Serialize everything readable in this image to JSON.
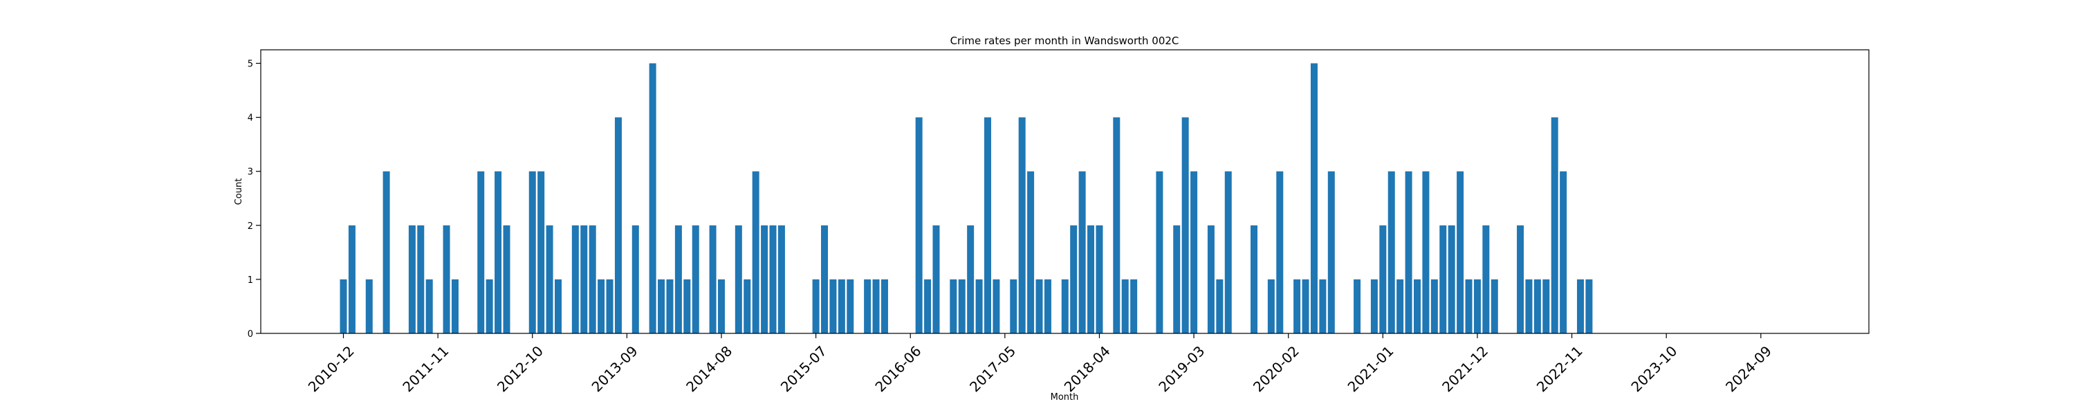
{
  "chart_data": {
    "type": "bar",
    "title": "Crime rates per month in Wandsworth 002C",
    "xlabel": "Month",
    "ylabel": "Count",
    "ylim": [
      0,
      5.25
    ],
    "y_ticks": [
      "0",
      "1",
      "2",
      "3",
      "4",
      "5"
    ],
    "x_tick_labels": [
      "2010-12",
      "2011-11",
      "2012-10",
      "2013-09",
      "2014-08",
      "2015-07",
      "2016-06",
      "2017-05",
      "2018-04",
      "2019-03",
      "2020-02",
      "2021-01",
      "2021-12",
      "2022-11",
      "2023-10",
      "2024-09"
    ],
    "bar_color": "#1f77b4",
    "grid": false,
    "series": [
      {
        "values": [
          [
            "2010-12",
            1
          ],
          [
            "2011-01",
            2
          ],
          [
            "2011-03",
            1
          ],
          [
            "2011-05",
            3
          ],
          [
            "2011-08",
            2
          ],
          [
            "2011-09",
            2
          ],
          [
            "2011-10",
            1
          ],
          [
            "2011-12",
            2
          ],
          [
            "2012-01",
            1
          ],
          [
            "2012-04",
            3
          ],
          [
            "2012-05",
            1
          ],
          [
            "2012-06",
            3
          ],
          [
            "2012-07",
            2
          ],
          [
            "2012-10",
            3
          ],
          [
            "2012-11",
            3
          ],
          [
            "2012-12",
            2
          ],
          [
            "2013-01",
            1
          ],
          [
            "2013-03",
            2
          ],
          [
            "2013-04",
            2
          ],
          [
            "2013-05",
            2
          ],
          [
            "2013-06",
            1
          ],
          [
            "2013-07",
            1
          ],
          [
            "2013-08",
            4
          ],
          [
            "2013-10",
            2
          ],
          [
            "2013-12",
            5
          ],
          [
            "2014-01",
            1
          ],
          [
            "2014-02",
            1
          ],
          [
            "2014-03",
            2
          ],
          [
            "2014-04",
            1
          ],
          [
            "2014-05",
            2
          ],
          [
            "2014-07",
            2
          ],
          [
            "2014-08",
            1
          ],
          [
            "2014-10",
            2
          ],
          [
            "2014-11",
            1
          ],
          [
            "2014-12",
            3
          ],
          [
            "2015-01",
            2
          ],
          [
            "2015-02",
            2
          ],
          [
            "2015-03",
            2
          ],
          [
            "2015-07",
            1
          ],
          [
            "2015-08",
            2
          ],
          [
            "2015-09",
            1
          ],
          [
            "2015-10",
            1
          ],
          [
            "2015-11",
            1
          ],
          [
            "2016-01",
            1
          ],
          [
            "2016-02",
            1
          ],
          [
            "2016-03",
            1
          ],
          [
            "2016-07",
            4
          ],
          [
            "2016-08",
            1
          ],
          [
            "2016-09",
            2
          ],
          [
            "2016-11",
            1
          ],
          [
            "2016-12",
            1
          ],
          [
            "2017-01",
            2
          ],
          [
            "2017-02",
            1
          ],
          [
            "2017-03",
            4
          ],
          [
            "2017-04",
            1
          ],
          [
            "2017-06",
            1
          ],
          [
            "2017-07",
            4
          ],
          [
            "2017-08",
            3
          ],
          [
            "2017-09",
            1
          ],
          [
            "2017-10",
            1
          ],
          [
            "2017-12",
            1
          ],
          [
            "2018-01",
            2
          ],
          [
            "2018-02",
            3
          ],
          [
            "2018-03",
            2
          ],
          [
            "2018-04",
            2
          ],
          [
            "2018-06",
            4
          ],
          [
            "2018-07",
            1
          ],
          [
            "2018-08",
            1
          ],
          [
            "2018-11",
            3
          ],
          [
            "2019-01",
            2
          ],
          [
            "2019-02",
            4
          ],
          [
            "2019-03",
            3
          ],
          [
            "2019-05",
            2
          ],
          [
            "2019-06",
            1
          ],
          [
            "2019-07",
            3
          ],
          [
            "2019-10",
            2
          ],
          [
            "2019-12",
            1
          ],
          [
            "2020-01",
            3
          ],
          [
            "2020-03",
            1
          ],
          [
            "2020-04",
            1
          ],
          [
            "2020-05",
            5
          ],
          [
            "2020-06",
            1
          ],
          [
            "2020-07",
            3
          ],
          [
            "2020-10",
            1
          ],
          [
            "2020-12",
            1
          ],
          [
            "2021-01",
            2
          ],
          [
            "2021-02",
            3
          ],
          [
            "2021-03",
            1
          ],
          [
            "2021-04",
            3
          ],
          [
            "2021-05",
            1
          ],
          [
            "2021-06",
            3
          ],
          [
            "2021-07",
            1
          ],
          [
            "2021-08",
            2
          ],
          [
            "2021-09",
            2
          ],
          [
            "2021-10",
            3
          ],
          [
            "2021-11",
            1
          ],
          [
            "2021-12",
            1
          ],
          [
            "2022-01",
            2
          ],
          [
            "2022-02",
            1
          ],
          [
            "2022-05",
            2
          ],
          [
            "2022-06",
            1
          ],
          [
            "2022-07",
            1
          ],
          [
            "2022-08",
            1
          ],
          [
            "2022-09",
            4
          ],
          [
            "2022-10",
            3
          ],
          [
            "2022-12",
            1
          ],
          [
            "2023-01",
            1
          ]
        ]
      }
    ]
  }
}
